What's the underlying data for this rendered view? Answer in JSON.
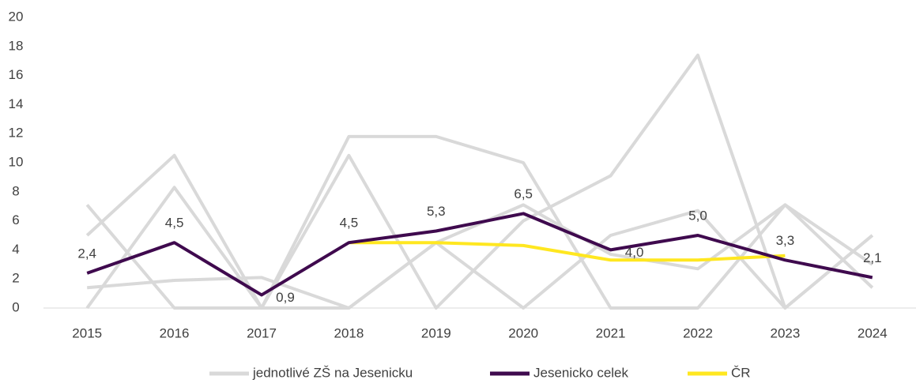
{
  "chart_data": {
    "type": "line",
    "categories": [
      "2015",
      "2016",
      "2017",
      "2018",
      "2019",
      "2020",
      "2021",
      "2022",
      "2023",
      "2024"
    ],
    "ylim": [
      0,
      20
    ],
    "yticks": [
      0,
      2,
      4,
      6,
      8,
      10,
      12,
      14,
      16,
      18,
      20
    ],
    "background_series": {
      "name": "jednotlivé ZŠ na Jesenicku",
      "color": "#d9d9d9",
      "lines": [
        [
          5.0,
          10.5,
          0,
          0,
          4.5,
          7.1,
          3.7,
          2.7,
          7.1,
          3.0
        ],
        [
          7.1,
          0,
          0,
          10.5,
          0,
          6.0,
          9.1,
          17.4,
          0,
          5.0
        ],
        [
          1.4,
          1.9,
          2.1,
          0,
          4.5,
          0,
          5.0,
          6.7,
          0,
          5.0
        ],
        [
          0,
          8.3,
          0,
          11.8,
          11.8,
          10.0,
          0,
          0,
          7.1,
          1.4
        ]
      ]
    },
    "series": [
      {
        "name": "Jesenicko celek",
        "color": "#3f0a4e",
        "values": [
          2.4,
          4.5,
          0.9,
          4.5,
          5.3,
          6.5,
          4.0,
          5.0,
          3.3,
          2.1
        ],
        "value_labels": [
          "2,4",
          "4,5",
          "0,9",
          "4,5",
          "5,3",
          "6,5",
          "4,0",
          "5,0",
          "3,3",
          "2,1"
        ]
      },
      {
        "name": "ČR",
        "color": "#ffe720",
        "values": [
          null,
          null,
          null,
          4.5,
          4.5,
          4.3,
          3.3,
          3.3,
          3.6,
          null
        ]
      }
    ]
  }
}
